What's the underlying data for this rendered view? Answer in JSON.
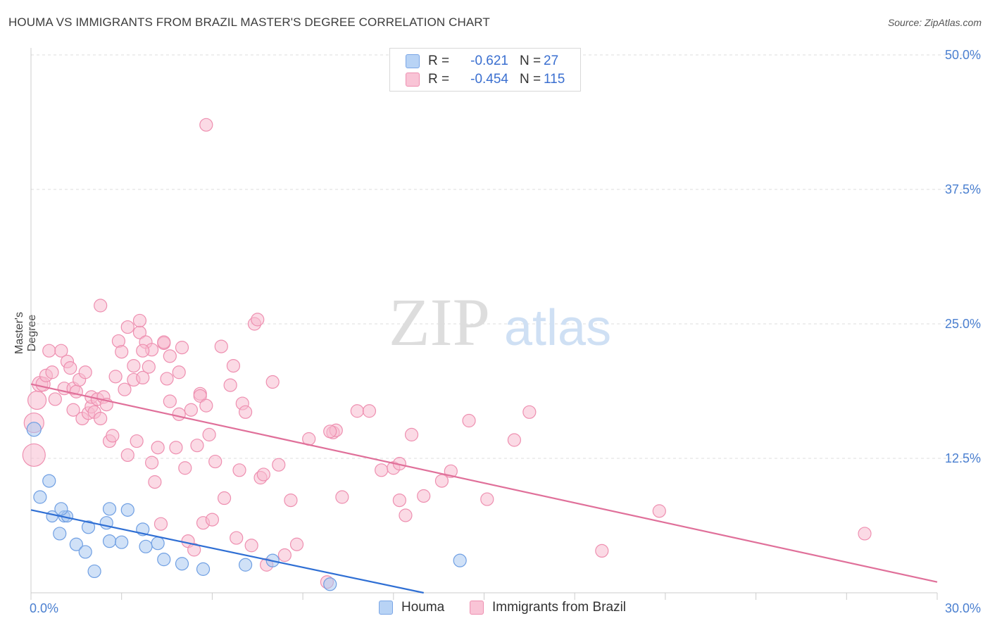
{
  "header": {
    "title": "HOUMA VS IMMIGRANTS FROM BRAZIL MASTER'S DEGREE CORRELATION CHART",
    "source": "Source: ZipAtlas.com"
  },
  "watermark": {
    "zip": "ZIP",
    "atlas": "atlas"
  },
  "legend": {
    "rows": [
      {
        "label": "R =",
        "r": "-0.621",
        "n_label": "N =",
        "n": "27",
        "fill": "#b8d3f5",
        "stroke": "#7aa6e6"
      },
      {
        "label": "R =",
        "r": "-0.454",
        "n_label": "N =",
        "n": "115",
        "fill": "#f9c4d6",
        "stroke": "#ee8fb0"
      }
    ]
  },
  "bottom_legend": {
    "houma": "Houma",
    "brazil": "Immigrants from Brazil"
  },
  "colors": {
    "houma_fill": "#aac8f0",
    "houma_stroke": "#6f9fe3",
    "houma_line": "#2f6fd4",
    "brazil_fill": "#f7bcd0",
    "brazil_stroke": "#ee8fb0",
    "brazil_line": "#e0709a",
    "tick_label": "#4a7fd0",
    "grid": "#dcdcdc"
  },
  "chart_data": {
    "type": "scatter",
    "title": "HOUMA VS IMMIGRANTS FROM BRAZIL MASTER'S DEGREE CORRELATION CHART",
    "xlabel": "",
    "ylabel": "Master's Degree",
    "xlim": [
      0,
      30
    ],
    "ylim": [
      0,
      50
    ],
    "x_tick_labels": [
      "0.0%",
      "30.0%"
    ],
    "y_ticks": [
      12.5,
      25.0,
      37.5,
      50.0
    ],
    "y_tick_labels": [
      "12.5%",
      "25.0%",
      "37.5%",
      "50.0%"
    ],
    "series": [
      {
        "name": "Houma",
        "trend": {
          "x": [
            0,
            13
          ],
          "y": [
            7.7,
            0
          ]
        },
        "points": [
          [
            0.1,
            15.2,
            10
          ],
          [
            0.6,
            10.4,
            9
          ],
          [
            0.3,
            8.9,
            9
          ],
          [
            0.7,
            7.1,
            8
          ],
          [
            1.1,
            7.1,
            8
          ],
          [
            1.2,
            7.1,
            8
          ],
          [
            1.0,
            7.8,
            9
          ],
          [
            2.6,
            7.8,
            9
          ],
          [
            3.2,
            7.7,
            9
          ],
          [
            2.5,
            6.5,
            9
          ],
          [
            1.9,
            6.1,
            9
          ],
          [
            0.95,
            5.5,
            9
          ],
          [
            3.7,
            5.9,
            9
          ],
          [
            4.2,
            4.6,
            9
          ],
          [
            1.5,
            4.5,
            9
          ],
          [
            2.6,
            4.8,
            9
          ],
          [
            3.0,
            4.7,
            9
          ],
          [
            3.8,
            4.3,
            9
          ],
          [
            1.8,
            3.8,
            9
          ],
          [
            4.4,
            3.1,
            9
          ],
          [
            5.0,
            2.7,
            9
          ],
          [
            5.7,
            2.2,
            9
          ],
          [
            7.1,
            2.6,
            9
          ],
          [
            8.0,
            3.0,
            9
          ],
          [
            2.1,
            2.0,
            9
          ],
          [
            9.9,
            0.8,
            9
          ],
          [
            14.2,
            3.0,
            9
          ]
        ]
      },
      {
        "name": "Immigrants from Brazil",
        "trend": {
          "x": [
            0,
            30
          ],
          "y": [
            19.4,
            1.0
          ]
        },
        "points": [
          [
            0.1,
            12.8,
            16
          ],
          [
            0.1,
            15.8,
            14
          ],
          [
            0.2,
            17.9,
            13
          ],
          [
            0.3,
            19.4,
            11
          ],
          [
            0.4,
            19.4,
            10
          ],
          [
            0.5,
            20.2,
            9
          ],
          [
            0.6,
            22.5,
            9
          ],
          [
            0.8,
            18.0,
            9
          ],
          [
            0.7,
            20.5,
            9
          ],
          [
            1.0,
            22.5,
            9
          ],
          [
            1.2,
            21.5,
            9
          ],
          [
            1.1,
            19.0,
            9
          ],
          [
            1.3,
            20.9,
            9
          ],
          [
            1.4,
            19.0,
            9
          ],
          [
            1.4,
            17.0,
            9
          ],
          [
            1.5,
            18.7,
            9
          ],
          [
            1.6,
            19.8,
            9
          ],
          [
            1.7,
            16.2,
            9
          ],
          [
            1.8,
            20.5,
            9
          ],
          [
            1.9,
            16.7,
            9
          ],
          [
            2.0,
            17.3,
            9
          ],
          [
            2.0,
            18.2,
            9
          ],
          [
            2.1,
            16.8,
            9
          ],
          [
            2.2,
            18.0,
            9
          ],
          [
            2.3,
            16.2,
            9
          ],
          [
            2.4,
            18.2,
            9
          ],
          [
            2.5,
            17.5,
            9
          ],
          [
            2.6,
            14.1,
            9
          ],
          [
            2.7,
            14.6,
            9
          ],
          [
            2.8,
            20.1,
            9
          ],
          [
            2.9,
            23.4,
            9
          ],
          [
            2.3,
            26.7,
            9
          ],
          [
            3.0,
            22.4,
            9
          ],
          [
            3.1,
            18.9,
            9
          ],
          [
            3.2,
            12.8,
            9
          ],
          [
            3.2,
            24.7,
            9
          ],
          [
            3.4,
            21.1,
            9
          ],
          [
            3.4,
            19.8,
            9
          ],
          [
            3.5,
            14.1,
            9
          ],
          [
            3.6,
            24.2,
            9
          ],
          [
            3.6,
            25.3,
            9
          ],
          [
            3.7,
            20.0,
            9
          ],
          [
            3.8,
            23.3,
            9
          ],
          [
            3.9,
            21.0,
            9
          ],
          [
            4.0,
            22.6,
            9
          ],
          [
            4.0,
            12.1,
            9
          ],
          [
            4.1,
            10.3,
            9
          ],
          [
            4.2,
            13.5,
            9
          ],
          [
            4.3,
            6.4,
            9
          ],
          [
            4.4,
            23.2,
            9
          ],
          [
            4.5,
            19.9,
            9
          ],
          [
            4.6,
            22.0,
            9
          ],
          [
            4.6,
            17.8,
            9
          ],
          [
            4.8,
            13.5,
            9
          ],
          [
            4.9,
            16.6,
            9
          ],
          [
            4.9,
            20.5,
            9
          ],
          [
            5.0,
            22.8,
            9
          ],
          [
            5.1,
            11.6,
            9
          ],
          [
            5.2,
            4.8,
            9
          ],
          [
            5.3,
            17.0,
            9
          ],
          [
            5.4,
            4.0,
            9
          ],
          [
            5.5,
            13.7,
            9
          ],
          [
            5.6,
            18.5,
            9
          ],
          [
            5.6,
            18.3,
            9
          ],
          [
            5.7,
            6.5,
            9
          ],
          [
            5.8,
            17.4,
            9
          ],
          [
            5.9,
            14.7,
            9
          ],
          [
            6.1,
            12.2,
            9
          ],
          [
            6.3,
            22.9,
            9
          ],
          [
            6.4,
            8.8,
            9
          ],
          [
            6.6,
            19.3,
            9
          ],
          [
            6.7,
            21.1,
            9
          ],
          [
            6.8,
            5.1,
            9
          ],
          [
            6.9,
            11.4,
            9
          ],
          [
            7.0,
            17.6,
            9
          ],
          [
            7.1,
            16.8,
            9
          ],
          [
            7.3,
            4.4,
            9
          ],
          [
            7.4,
            25.0,
            9
          ],
          [
            7.5,
            25.4,
            9
          ],
          [
            7.6,
            10.7,
            9
          ],
          [
            7.7,
            11.0,
            9
          ],
          [
            7.8,
            2.6,
            9
          ],
          [
            8.0,
            19.6,
            9
          ],
          [
            8.2,
            11.9,
            9
          ],
          [
            8.4,
            3.5,
            9
          ],
          [
            8.6,
            8.6,
            9
          ],
          [
            8.8,
            4.5,
            9
          ],
          [
            9.2,
            14.3,
            9
          ],
          [
            9.8,
            1.0,
            9
          ],
          [
            10.0,
            14.9,
            9
          ],
          [
            10.1,
            15.1,
            9
          ],
          [
            10.3,
            8.9,
            9
          ],
          [
            10.8,
            16.9,
            9
          ],
          [
            11.2,
            16.9,
            9
          ],
          [
            11.6,
            11.4,
            9
          ],
          [
            12.0,
            11.6,
            9
          ],
          [
            12.2,
            12.0,
            9
          ],
          [
            12.2,
            8.6,
            9
          ],
          [
            12.4,
            7.2,
            9
          ],
          [
            12.6,
            14.7,
            9
          ],
          [
            13.0,
            9.0,
            9
          ],
          [
            13.6,
            10.4,
            9
          ],
          [
            13.9,
            11.3,
            9
          ],
          [
            14.5,
            16.0,
            9
          ],
          [
            15.1,
            8.7,
            9
          ],
          [
            16.0,
            14.2,
            9
          ],
          [
            16.5,
            16.8,
            9
          ],
          [
            18.9,
            3.9,
            9
          ],
          [
            20.8,
            7.6,
            9
          ],
          [
            27.6,
            5.5,
            9
          ],
          [
            5.8,
            43.5,
            9
          ],
          [
            9.9,
            15.0,
            9
          ],
          [
            4.4,
            23.3,
            9
          ],
          [
            3.7,
            22.5,
            9
          ],
          [
            6.0,
            6.8,
            9
          ]
        ]
      }
    ]
  }
}
